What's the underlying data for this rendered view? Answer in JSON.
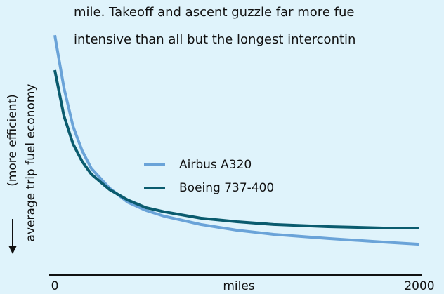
{
  "chart_data": {
    "type": "line",
    "annotations": [
      "mile. Takeoff and ascent guzzle far more fue",
      "intensive than all but the longest intercontin"
    ],
    "x_label": "miles",
    "y_label": [
      "(more efficient)",
      "average trip fuel economy"
    ],
    "x": [
      0,
      50,
      100,
      150,
      200,
      300,
      400,
      500,
      600,
      800,
      1000,
      1200,
      1500,
      1800,
      2000
    ],
    "xlim": [
      0,
      2000
    ],
    "xticks": [
      0,
      2000
    ],
    "ylim": [
      0,
      100
    ],
    "series": [
      {
        "name": "Airbus A320",
        "color": "#6aa3d8",
        "values": [
          87.2,
          68.1,
          54.1,
          45.2,
          38.8,
          31.6,
          26.5,
          23.5,
          21.4,
          18.4,
          16.3,
          14.8,
          13.3,
          12.0,
          11.2
        ]
      },
      {
        "name": "Boeing 737-400",
        "color": "#0a5b6e",
        "values": [
          74.5,
          57.9,
          47.7,
          41.3,
          36.7,
          31.1,
          27.3,
          24.5,
          23.0,
          20.7,
          19.4,
          18.4,
          17.6,
          17.1,
          17.1
        ]
      }
    ]
  }
}
